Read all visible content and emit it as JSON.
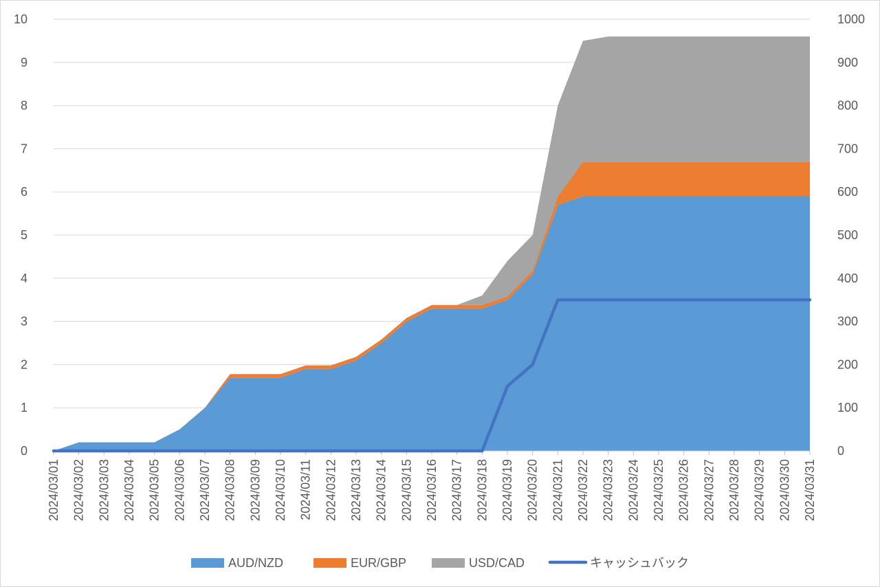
{
  "chart_data": {
    "type": "area",
    "categories": [
      "2024/03/01",
      "2024/03/02",
      "2024/03/03",
      "2024/03/04",
      "2024/03/05",
      "2024/03/06",
      "2024/03/07",
      "2024/03/08",
      "2024/03/09",
      "2024/03/10",
      "2024/03/11",
      "2024/03/12",
      "2024/03/13",
      "2024/03/14",
      "2024/03/15",
      "2024/03/16",
      "2024/03/17",
      "2024/03/18",
      "2024/03/19",
      "2024/03/20",
      "2024/03/21",
      "2024/03/22",
      "2024/03/23",
      "2024/03/24",
      "2024/03/25",
      "2024/03/26",
      "2024/03/27",
      "2024/03/28",
      "2024/03/29",
      "2024/03/30",
      "2024/03/31"
    ],
    "stacked": true,
    "series": [
      {
        "name": "AUD/NZD",
        "type": "area",
        "axis": "left",
        "color": "#5B9BD5",
        "values": [
          0,
          0.2,
          0.2,
          0.2,
          0.2,
          0.5,
          1.0,
          1.7,
          1.7,
          1.7,
          1.9,
          1.9,
          2.1,
          2.5,
          3.0,
          3.3,
          3.3,
          3.3,
          3.5,
          4.1,
          5.7,
          5.9,
          5.9,
          5.9,
          5.9,
          5.9,
          5.9,
          5.9,
          5.9,
          5.9,
          5.9
        ]
      },
      {
        "name": "EUR/GBP",
        "type": "area",
        "axis": "left",
        "color": "#ED7D31",
        "values": [
          0,
          0,
          0,
          0,
          0,
          0,
          0,
          0.08,
          0.08,
          0.08,
          0.08,
          0.08,
          0.08,
          0.08,
          0.08,
          0.08,
          0.08,
          0.08,
          0.08,
          0.08,
          0.2,
          0.8,
          0.8,
          0.8,
          0.8,
          0.8,
          0.8,
          0.8,
          0.8,
          0.8,
          0.8
        ]
      },
      {
        "name": "USD/CAD",
        "type": "area",
        "axis": "left",
        "color": "#A5A5A5",
        "values": [
          0,
          0,
          0,
          0,
          0,
          0,
          0,
          0,
          0,
          0,
          0,
          0,
          0,
          0,
          0,
          0,
          0,
          0.22,
          0.82,
          0.82,
          2.1,
          2.8,
          2.9,
          2.9,
          2.9,
          2.9,
          2.9,
          2.9,
          2.9,
          2.9,
          2.9
        ]
      },
      {
        "name": "キャッシュバック",
        "type": "line",
        "axis": "right",
        "color": "#4472C4",
        "values": [
          0,
          0,
          0,
          0,
          0,
          0,
          0,
          0,
          0,
          0,
          0,
          0,
          0,
          0,
          0,
          0,
          0,
          0,
          150,
          200,
          350,
          350,
          350,
          350,
          350,
          350,
          350,
          350,
          350,
          350,
          350
        ]
      }
    ],
    "y_left": {
      "min": 0,
      "max": 10,
      "ticks": [
        "0",
        "1",
        "2",
        "3",
        "4",
        "5",
        "6",
        "7",
        "8",
        "9",
        "10"
      ]
    },
    "y_right": {
      "min": 0,
      "max": 1000,
      "ticks": [
        "0",
        "100",
        "200",
        "300",
        "400",
        "500",
        "600",
        "700",
        "800",
        "900",
        "1000"
      ]
    },
    "grid": true,
    "legend": "bottom",
    "title": "",
    "xlabel": "",
    "ylabel": ""
  }
}
